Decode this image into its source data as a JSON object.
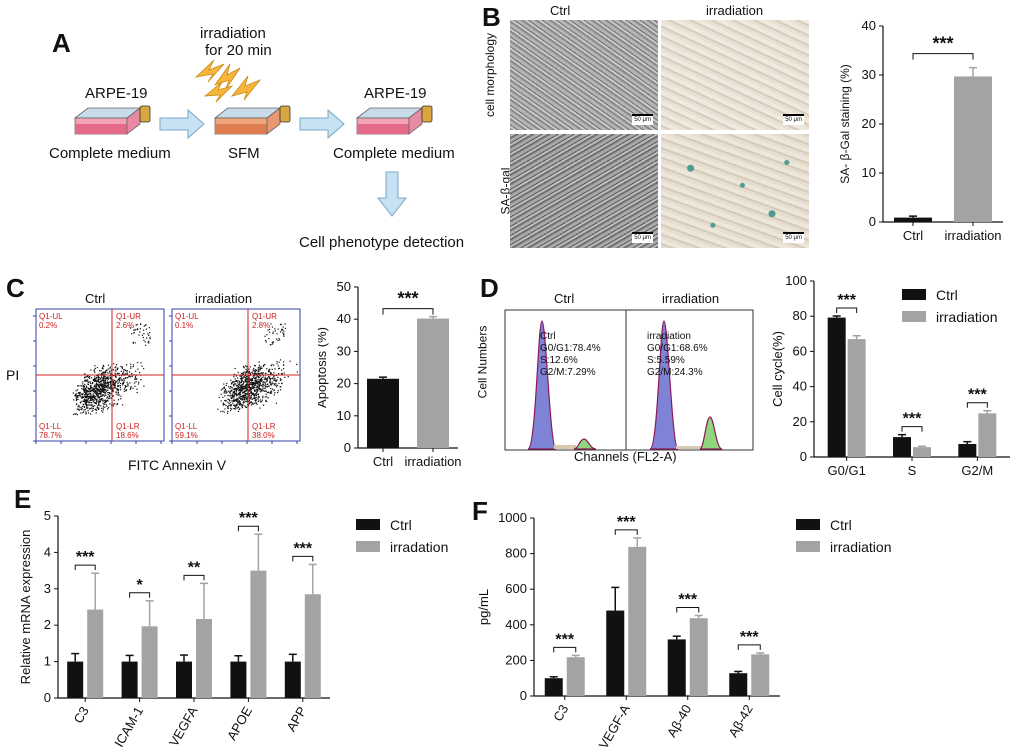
{
  "panels": {
    "A": {
      "label": "A",
      "irradiation_label": "irradiation",
      "irradiation_time": "for 20 min",
      "flask1_label": "ARPE-19",
      "flask1_medium": "Complete medium",
      "flask2_medium": "SFM",
      "flask3_label": "ARPE-19",
      "flask3_medium": "Complete medium",
      "final_step": "Cell phenotype detection",
      "colors": {
        "cap": "#2a2a2a",
        "body_top": "#c8dbe8",
        "body_front": "#f3a3b5",
        "medium_dark": "#e56a8a",
        "sfm": "#e88560",
        "arrow": "#c6e2f3",
        "arrow_stroke": "#7aa7c4",
        "bolt": "#f6b53b"
      }
    },
    "B": {
      "label": "B",
      "col_ctrl": "Ctrl",
      "col_irr": "irradiation",
      "row1": "cell morphology",
      "row2": "SA-β-gal",
      "scale_bar": "50 μm"
    },
    "C": {
      "label": "C",
      "col_ctrl": "Ctrl",
      "col_irr": "irradiation",
      "y_axis": "PI",
      "x_axis": "FITC Annexin V",
      "ctrl_quadrants": {
        "ul": "Q1-UL",
        "ul_val": "0.2%",
        "ur": "Q1-UR",
        "ur_val": "2.6%",
        "ll": "Q1-LL",
        "ll_val": "78.7%",
        "lr": "Q1-LR",
        "lr_val": "18.6%"
      },
      "irr_quadrants": {
        "ul": "Q1-UL",
        "ul_val": "0.1%",
        "ur": "Q1-UR",
        "ur_val": "2.8%",
        "ll": "Q1-LL",
        "ll_val": "59.1%",
        "lr": "Q1-LR",
        "lr_val": "38.0%"
      }
    },
    "D": {
      "label": "D",
      "col_ctrl": "Ctrl",
      "col_irr": "irradiation",
      "y_axis": "Cell Numbers",
      "x_axis": "Channels (FL2-A)",
      "ctrl_text": [
        "Ctrl",
        "G0/G1:78.4%",
        "S:12.6%",
        "G2/M:7.29%"
      ],
      "irr_text": [
        "irradiation",
        "G0/G1:68.6%",
        "S:5.59%",
        "G2/M:24.3%"
      ]
    },
    "E": {
      "label": "E"
    },
    "F": {
      "label": "F"
    }
  },
  "chart_data": [
    {
      "id": "B-bar",
      "type": "bar",
      "categories": [
        "Ctrl",
        "irradiation"
      ],
      "values": [
        0.9,
        29.7
      ],
      "errors": [
        0.3,
        1.8
      ],
      "ylabel": "SA- β-Gal staining (%)",
      "ylim": [
        0,
        40
      ],
      "yticks": [
        0,
        10,
        20,
        30,
        40
      ],
      "significance": [
        {
          "from": 0,
          "to": 1,
          "label": "***"
        }
      ],
      "colors": [
        "#111111",
        "#a3a3a3"
      ]
    },
    {
      "id": "C-bar",
      "type": "bar",
      "categories": [
        "Ctrl",
        "irradiation"
      ],
      "values": [
        21.5,
        40.2
      ],
      "errors": [
        0.5,
        0.6
      ],
      "ylabel": "Apoptosis (%)",
      "ylim": [
        0,
        50
      ],
      "yticks": [
        0,
        10,
        20,
        30,
        40,
        50
      ],
      "significance": [
        {
          "from": 0,
          "to": 1,
          "label": "***"
        }
      ],
      "colors": [
        "#111111",
        "#a3a3a3"
      ]
    },
    {
      "id": "D-bar",
      "type": "bar",
      "categories": [
        "G0/G1",
        "S",
        "G2/M"
      ],
      "series": [
        {
          "name": "Ctrl",
          "values": [
            79.2,
            11.3,
            7.4
          ],
          "errors": [
            0.9,
            1.4,
            1.3
          ]
        },
        {
          "name": "irradiation",
          "values": [
            67.0,
            5.6,
            24.8
          ],
          "errors": [
            1.9,
            0.5,
            1.5
          ]
        }
      ],
      "ylabel": "Cell cycle(%)",
      "ylim": [
        0,
        100
      ],
      "yticks": [
        0,
        20,
        40,
        60,
        80,
        100
      ],
      "significance": [
        "***",
        "***",
        "***"
      ],
      "legend": "top-right",
      "colors": [
        "#111111",
        "#a3a3a3"
      ]
    },
    {
      "id": "E-bar",
      "type": "bar",
      "categories": [
        "C3",
        "ICAM-1",
        "VEGFA",
        "APOE",
        "APP"
      ],
      "series": [
        {
          "name": "Ctrl",
          "values": [
            1.0,
            1.0,
            1.0,
            1.0,
            1.0
          ],
          "errors": [
            0.22,
            0.17,
            0.18,
            0.16,
            0.2
          ]
        },
        {
          "name": "irradation",
          "values": [
            2.43,
            1.97,
            2.17,
            3.5,
            2.85
          ],
          "errors": [
            1.0,
            0.7,
            0.98,
            1.0,
            0.82
          ]
        }
      ],
      "ylabel": "Relative mRNA expression",
      "ylim": [
        0,
        5
      ],
      "yticks": [
        0,
        1,
        2,
        3,
        4,
        5
      ],
      "significance": [
        "***",
        "*",
        "**",
        "***",
        "***"
      ],
      "legend": "top-right",
      "colors": [
        "#111111",
        "#a3a3a3"
      ]
    },
    {
      "id": "F-bar",
      "type": "bar",
      "categories": [
        "C3",
        "VEGF-A",
        "Aβ-40",
        "Aβ-42"
      ],
      "series": [
        {
          "name": "Ctrl",
          "values": [
            100,
            480,
            318,
            128
          ],
          "errors": [
            8,
            130,
            18,
            10
          ]
        },
        {
          "name": "irradiation",
          "values": [
            218,
            838,
            437,
            234
          ],
          "errors": [
            10,
            50,
            15,
            8
          ]
        }
      ],
      "ylabel": "pg/mL",
      "ylim": [
        0,
        1000
      ],
      "yticks": [
        0,
        200,
        400,
        600,
        800,
        1000
      ],
      "significance": [
        "***",
        "***",
        "***",
        "***"
      ],
      "legend": "top-right",
      "colors": [
        "#111111",
        "#a3a3a3"
      ]
    }
  ]
}
